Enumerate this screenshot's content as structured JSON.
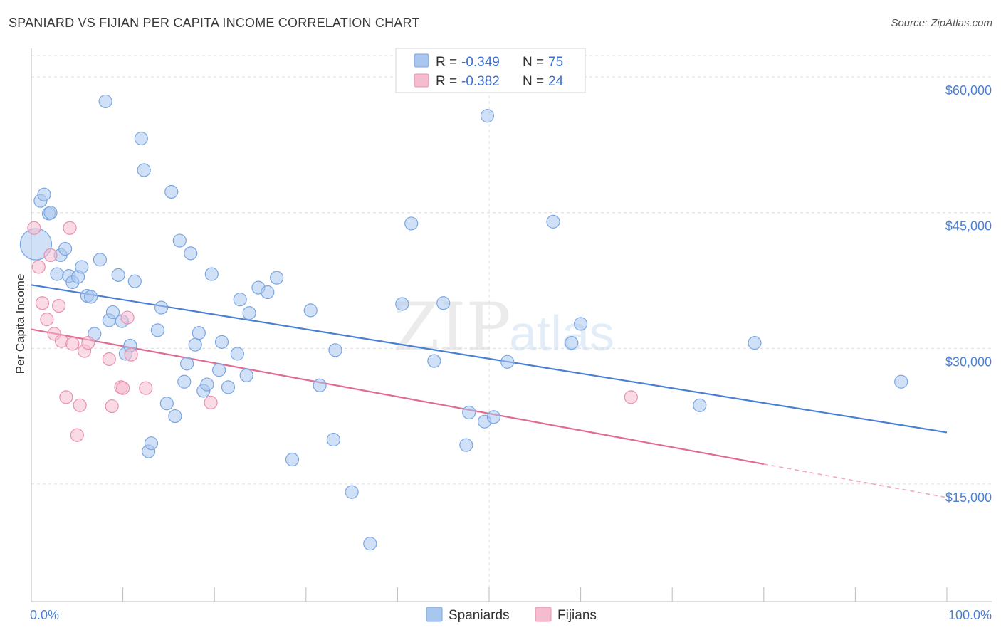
{
  "header": {
    "title": "SPANIARD VS FIJIAN PER CAPITA INCOME CORRELATION CHART",
    "source": "Source: ZipAtlas.com"
  },
  "watermark": {
    "zip": "ZIP",
    "atlas": "atlas"
  },
  "colors": {
    "spaniards": "#4a7fd4",
    "spaniards_fill": "#a9c6ef",
    "fijians": "#e06b93",
    "fijians_fill": "#f5bccf",
    "tick_text": "#4a7fd4"
  },
  "legend": {
    "rows": [
      {
        "r_label": "R =",
        "r_value": "-0.349",
        "n_label": "N =",
        "n_value": "75"
      },
      {
        "r_label": "R =",
        "r_value": "-0.382",
        "n_label": "N =",
        "n_value": "24"
      }
    ]
  },
  "chart_data": {
    "type": "scatter",
    "title": "SPANIARD VS FIJIAN PER CAPITA INCOME CORRELATION CHART",
    "xlabel": "",
    "ylabel": "Per Capita Income",
    "xlim": [
      0,
      100
    ],
    "ylim": [
      2000,
      63000
    ],
    "x_tick_labels": [
      "0.0%",
      "100.0%"
    ],
    "y_ticks": [
      15000,
      30000,
      45000,
      60000
    ],
    "y_tick_labels": [
      "$15,000",
      "$30,000",
      "$45,000",
      "$60,000"
    ],
    "grid": true,
    "legend_position": "top-center",
    "series": [
      {
        "name": "Spaniards",
        "r": -0.349,
        "n": 75,
        "trend": {
          "x0": 0,
          "y0": 37000,
          "x1": 100,
          "y1": 20700
        },
        "points": [
          [
            0.5,
            41500,
            "big"
          ],
          [
            1.0,
            46300
          ],
          [
            1.4,
            47000
          ],
          [
            1.9,
            44900
          ],
          [
            2.1,
            45000
          ],
          [
            2.8,
            38200
          ],
          [
            3.2,
            40300
          ],
          [
            3.7,
            41000
          ],
          [
            4.1,
            38000
          ],
          [
            4.5,
            37300
          ],
          [
            5.1,
            37900
          ],
          [
            5.5,
            39000
          ],
          [
            6.1,
            35800
          ],
          [
            6.5,
            35700
          ],
          [
            6.9,
            31600
          ],
          [
            7.5,
            39800
          ],
          [
            8.1,
            57300
          ],
          [
            8.5,
            33100
          ],
          [
            8.9,
            34000
          ],
          [
            9.5,
            38100
          ],
          [
            9.9,
            33000
          ],
          [
            10.3,
            29400
          ],
          [
            10.8,
            30300
          ],
          [
            11.3,
            37400
          ],
          [
            12.0,
            53200
          ],
          [
            12.3,
            49700
          ],
          [
            12.8,
            18600
          ],
          [
            13.1,
            19500
          ],
          [
            13.8,
            32000
          ],
          [
            14.2,
            34500
          ],
          [
            14.8,
            23900
          ],
          [
            15.3,
            47300
          ],
          [
            15.7,
            22500
          ],
          [
            16.2,
            41900
          ],
          [
            16.7,
            26300
          ],
          [
            17.0,
            28300
          ],
          [
            17.4,
            40500
          ],
          [
            17.9,
            30400
          ],
          [
            18.3,
            31700
          ],
          [
            18.8,
            25300
          ],
          [
            19.2,
            26000
          ],
          [
            19.7,
            38200
          ],
          [
            20.5,
            27600
          ],
          [
            20.8,
            30700
          ],
          [
            21.5,
            25700
          ],
          [
            22.5,
            29400
          ],
          [
            22.8,
            35400
          ],
          [
            23.5,
            27000
          ],
          [
            23.8,
            33900
          ],
          [
            24.8,
            36700
          ],
          [
            25.8,
            36200
          ],
          [
            26.8,
            37800
          ],
          [
            28.5,
            17700
          ],
          [
            30.5,
            34200
          ],
          [
            31.5,
            25900
          ],
          [
            33.0,
            19900
          ],
          [
            33.2,
            29800
          ],
          [
            35.0,
            14100
          ],
          [
            37.0,
            8400
          ],
          [
            40.5,
            34900
          ],
          [
            41.5,
            43800
          ],
          [
            44.0,
            28600
          ],
          [
            45.0,
            35000
          ],
          [
            47.5,
            19300
          ],
          [
            47.8,
            22900
          ],
          [
            49.5,
            21900
          ],
          [
            49.8,
            55700
          ],
          [
            50.5,
            22400
          ],
          [
            52.0,
            28500
          ],
          [
            57.0,
            44000
          ],
          [
            59.0,
            30600
          ],
          [
            60.0,
            32700
          ],
          [
            73.0,
            23700
          ],
          [
            79.0,
            30600
          ],
          [
            95.0,
            26300
          ]
        ]
      },
      {
        "name": "Fijians",
        "r": -0.382,
        "n": 24,
        "trend": {
          "x0": 0,
          "y0": 32100,
          "x1": 80,
          "y1": 17200,
          "dash_x1": 100,
          "dash_y1": 13500
        },
        "points": [
          [
            0.3,
            43300
          ],
          [
            0.8,
            39000
          ],
          [
            1.2,
            35000
          ],
          [
            1.7,
            33200
          ],
          [
            2.1,
            40300
          ],
          [
            2.5,
            31600
          ],
          [
            3.0,
            34700
          ],
          [
            3.3,
            30800
          ],
          [
            3.8,
            24600
          ],
          [
            4.2,
            43300
          ],
          [
            4.5,
            30500
          ],
          [
            5.0,
            20400
          ],
          [
            5.3,
            23700
          ],
          [
            5.8,
            29700
          ],
          [
            6.2,
            30600
          ],
          [
            8.5,
            28800
          ],
          [
            8.8,
            23600
          ],
          [
            9.8,
            25700
          ],
          [
            10.0,
            25600
          ],
          [
            10.5,
            33400
          ],
          [
            10.9,
            29300
          ],
          [
            12.5,
            25600
          ],
          [
            19.6,
            24000
          ],
          [
            65.5,
            24600
          ]
        ]
      }
    ]
  }
}
